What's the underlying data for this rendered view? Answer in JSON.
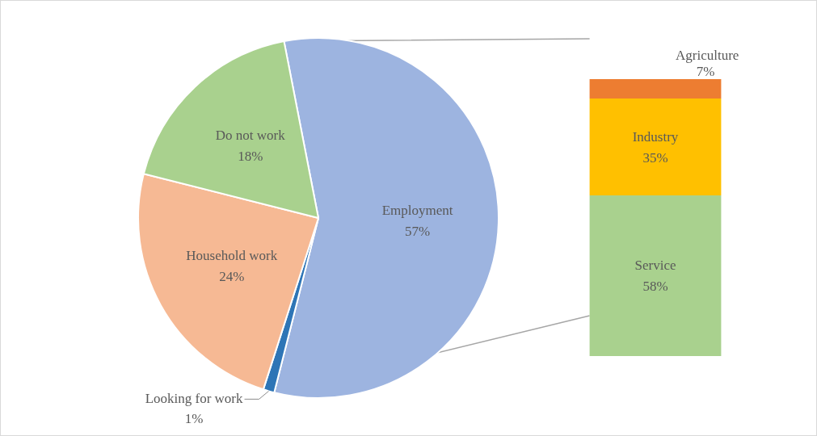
{
  "chart_data": [
    {
      "type": "pie",
      "categories": [
        "Employment",
        "Looking for work",
        "Household work",
        "Do not work"
      ],
      "values": [
        57,
        1,
        24,
        18
      ],
      "colors": [
        "#9db4e0",
        "#2e75b6",
        "#f6b994",
        "#a9d18e"
      ],
      "value_labels": [
        "57%",
        "1%",
        "24%",
        "18%"
      ],
      "legend": false
    },
    {
      "type": "bar",
      "stacked": true,
      "categories": [
        null
      ],
      "legend": false,
      "series": [
        {
          "name": "Service",
          "color": "#a9d18e",
          "values": [
            58
          ],
          "value_labels": [
            "58%"
          ]
        },
        {
          "name": "Industry",
          "color": "#ffc000",
          "values": [
            35
          ],
          "value_labels": [
            "35%"
          ]
        },
        {
          "name": "Agriculture",
          "color": "#ed7d31",
          "values": [
            7
          ],
          "value_labels": [
            "7%"
          ]
        }
      ]
    }
  ]
}
